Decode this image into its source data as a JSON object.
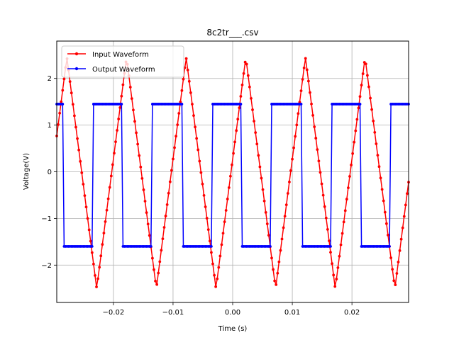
{
  "chart_data": {
    "type": "line",
    "title": "8c2tr___.csv",
    "xlabel": "Time (s)",
    "ylabel": "Voltage(V)",
    "xlim": [
      -0.0295,
      0.0295
    ],
    "ylim": [
      -2.8,
      2.8
    ],
    "grid": true,
    "legend_position": "top-left",
    "x_ticks": [
      {
        "value": -0.02,
        "label": "−0.02"
      },
      {
        "value": -0.01,
        "label": "−0.01"
      },
      {
        "value": 0.0,
        "label": "0.00"
      },
      {
        "value": 0.01,
        "label": "0.01"
      },
      {
        "value": 0.02,
        "label": "0.02"
      }
    ],
    "y_ticks": [
      {
        "value": -2,
        "label": "−2"
      },
      {
        "value": -1,
        "label": "−1"
      },
      {
        "value": 0,
        "label": "0"
      },
      {
        "value": 1,
        "label": "1"
      },
      {
        "value": 2,
        "label": "2"
      }
    ],
    "series": [
      {
        "name": "Input Waveform",
        "color": "#ff0000",
        "shape": "sawtooth-like periodic wave",
        "period": 0.01,
        "peak_time": 0.0022,
        "trough_time": -0.0028,
        "max": 2.45,
        "min": -2.5,
        "x_start": -0.0295,
        "x_end": 0.0295,
        "samples": 240
      },
      {
        "name": "Output Waveform",
        "color": "#0000ff",
        "shape": "square wave",
        "period": 0.01,
        "rise_time": -0.0035,
        "fall_time": 0.0015,
        "high": 1.45,
        "low": -1.6,
        "x_start": -0.0295,
        "x_end": 0.0295,
        "samples": 240
      }
    ]
  }
}
